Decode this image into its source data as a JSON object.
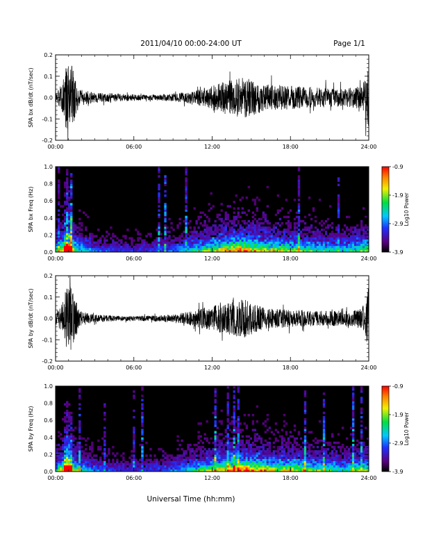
{
  "header": {
    "title": "2011/04/10  00:00-24:00 UT",
    "page": "Page 1/1"
  },
  "colors": {
    "background": "#ffffff",
    "trace": "#000000",
    "spectrogram_background": "#000000"
  },
  "colorbar": {
    "label": "Log10 Power",
    "ticks": [
      "-0.9",
      "-1.9",
      "-2.9",
      "-3.9"
    ],
    "range": [
      -3.9,
      -0.9
    ]
  },
  "chart_data": [
    {
      "type": "line",
      "ylabel": "SPA bx dB/dt (nT/sec)",
      "xlim": [
        0,
        24
      ],
      "ylim": [
        -0.2,
        0.2
      ],
      "x_ticks": [
        "00:00",
        "06:00",
        "12:00",
        "18:00",
        "24:00"
      ],
      "y_ticks": [
        "0.2",
        "0.1",
        "0.0",
        "-0.1",
        "-0.2"
      ],
      "envelope": [
        {
          "x": 0.0,
          "amp": 0.05
        },
        {
          "x": 0.5,
          "amp": 0.1
        },
        {
          "x": 0.8,
          "amp": 0.25
        },
        {
          "x": 1.3,
          "amp": 0.25
        },
        {
          "x": 1.8,
          "amp": 0.07
        },
        {
          "x": 3.0,
          "amp": 0.04
        },
        {
          "x": 5.0,
          "amp": 0.03
        },
        {
          "x": 7.0,
          "amp": 0.02
        },
        {
          "x": 9.0,
          "amp": 0.03
        },
        {
          "x": 10.5,
          "amp": 0.05
        },
        {
          "x": 12.0,
          "amp": 0.09
        },
        {
          "x": 13.0,
          "amp": 0.13
        },
        {
          "x": 14.5,
          "amp": 0.16
        },
        {
          "x": 16.0,
          "amp": 0.11
        },
        {
          "x": 18.0,
          "amp": 0.09
        },
        {
          "x": 20.0,
          "amp": 0.08
        },
        {
          "x": 22.0,
          "amp": 0.07
        },
        {
          "x": 23.5,
          "amp": 0.09
        },
        {
          "x": 24.0,
          "amp": 0.25
        }
      ]
    },
    {
      "type": "heatmap",
      "ylabel": "SPA bx Freq (Hz)",
      "xlim": [
        0,
        24
      ],
      "ylim": [
        0,
        1.0
      ],
      "zlim": [
        -3.9,
        -0.9
      ],
      "x_ticks": [
        "00:00",
        "06:00",
        "12:00",
        "18:00",
        "24:00"
      ],
      "y_ticks": [
        "1.0",
        "0.8",
        "0.6",
        "0.4",
        "0.2",
        "0.0"
      ],
      "activity": [
        {
          "x": 0.0,
          "level": 0.45
        },
        {
          "x": 0.7,
          "level": 0.8
        },
        {
          "x": 1.0,
          "level": 1.0
        },
        {
          "x": 1.5,
          "level": 0.55
        },
        {
          "x": 3.0,
          "level": 0.3
        },
        {
          "x": 6.0,
          "level": 0.2
        },
        {
          "x": 9.0,
          "level": 0.3
        },
        {
          "x": 11.0,
          "level": 0.5
        },
        {
          "x": 13.0,
          "level": 0.75
        },
        {
          "x": 14.5,
          "level": 0.85
        },
        {
          "x": 16.0,
          "level": 0.7
        },
        {
          "x": 18.0,
          "level": 0.6
        },
        {
          "x": 20.0,
          "level": 0.5
        },
        {
          "x": 22.0,
          "level": 0.45
        },
        {
          "x": 24.0,
          "level": 0.6
        }
      ]
    },
    {
      "type": "line",
      "ylabel": "SPA by dB/dt (nT/sec)",
      "xlim": [
        0,
        24
      ],
      "ylim": [
        -0.2,
        0.2
      ],
      "x_ticks": [
        "00:00",
        "06:00",
        "12:00",
        "18:00",
        "24:00"
      ],
      "y_ticks": [
        "0.2",
        "0.1",
        "0.0",
        "-0.1",
        "-0.2"
      ],
      "envelope": [
        {
          "x": 0.0,
          "amp": 0.05
        },
        {
          "x": 0.5,
          "amp": 0.1
        },
        {
          "x": 0.8,
          "amp": 0.25
        },
        {
          "x": 1.3,
          "amp": 0.25
        },
        {
          "x": 1.8,
          "amp": 0.06
        },
        {
          "x": 3.0,
          "amp": 0.03
        },
        {
          "x": 5.0,
          "amp": 0.02
        },
        {
          "x": 7.0,
          "amp": 0.02
        },
        {
          "x": 9.0,
          "amp": 0.03
        },
        {
          "x": 10.5,
          "amp": 0.06
        },
        {
          "x": 12.0,
          "amp": 0.1
        },
        {
          "x": 13.0,
          "amp": 0.12
        },
        {
          "x": 14.5,
          "amp": 0.15
        },
        {
          "x": 16.0,
          "amp": 0.08
        },
        {
          "x": 18.0,
          "amp": 0.07
        },
        {
          "x": 20.0,
          "amp": 0.06
        },
        {
          "x": 22.0,
          "amp": 0.06
        },
        {
          "x": 23.5,
          "amp": 0.08
        },
        {
          "x": 24.0,
          "amp": 0.25
        }
      ]
    },
    {
      "type": "heatmap",
      "ylabel": "SPA by Freq (Hz)",
      "xlim": [
        0,
        24
      ],
      "ylim": [
        0,
        1.0
      ],
      "zlim": [
        -3.9,
        -0.9
      ],
      "x_ticks": [
        "00:00",
        "06:00",
        "12:00",
        "18:00",
        "24:00"
      ],
      "y_ticks": [
        "1.0",
        "0.8",
        "0.6",
        "0.4",
        "0.2",
        "0.0"
      ],
      "activity": [
        {
          "x": 0.0,
          "level": 0.45
        },
        {
          "x": 0.7,
          "level": 0.8
        },
        {
          "x": 1.0,
          "level": 1.0
        },
        {
          "x": 1.5,
          "level": 0.55
        },
        {
          "x": 3.0,
          "level": 0.3
        },
        {
          "x": 6.0,
          "level": 0.2
        },
        {
          "x": 9.0,
          "level": 0.3
        },
        {
          "x": 11.0,
          "level": 0.5
        },
        {
          "x": 13.0,
          "level": 0.75
        },
        {
          "x": 14.5,
          "level": 0.85
        },
        {
          "x": 16.0,
          "level": 0.7
        },
        {
          "x": 18.0,
          "level": 0.65
        },
        {
          "x": 20.0,
          "level": 0.55
        },
        {
          "x": 22.0,
          "level": 0.45
        },
        {
          "x": 24.0,
          "level": 0.6
        }
      ]
    }
  ],
  "xlabel": "Universal Time (hh:mm)"
}
